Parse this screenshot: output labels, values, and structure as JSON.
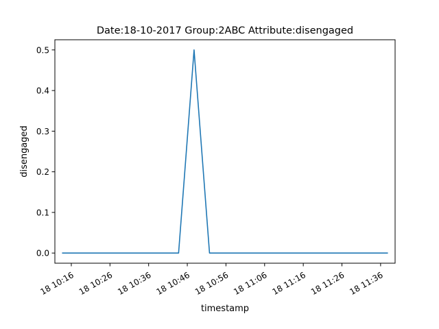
{
  "chart_data": {
    "type": "line",
    "title": "Date:18-10-2017  Group:2ABC Attribute:disengaged",
    "xlabel": "timestamp",
    "ylabel": "disengaged",
    "x_axis_type": "time",
    "date": "2017-10-18",
    "xlim": [
      "10:11:45",
      "11:39:45"
    ],
    "ylim": [
      -0.025,
      0.525
    ],
    "x_tick_values": [
      "10:16",
      "10:26",
      "10:36",
      "10:46",
      "10:56",
      "11:06",
      "11:16",
      "11:26",
      "11:36"
    ],
    "x_tick_labels": [
      "18 10:16",
      "18 10:26",
      "18 10:36",
      "18 10:46",
      "18 10:56",
      "18 11:06",
      "18 11:16",
      "18 11:26",
      "18 11:36"
    ],
    "y_tick_values": [
      0.0,
      0.1,
      0.2,
      0.3,
      0.4,
      0.5
    ],
    "y_tick_labels": [
      "0.0",
      "0.1",
      "0.2",
      "0.3",
      "0.4",
      "0.5"
    ],
    "grid": false,
    "legend": "none",
    "series": [
      {
        "color": "#1f77b4",
        "points": [
          {
            "x": "10:13:45",
            "y": 0.0
          },
          {
            "x": "10:43:45",
            "y": 0.0
          },
          {
            "x": "10:47:45",
            "y": 0.5
          },
          {
            "x": "10:51:45",
            "y": 0.0
          },
          {
            "x": "11:37:45",
            "y": 0.0
          }
        ]
      }
    ]
  }
}
